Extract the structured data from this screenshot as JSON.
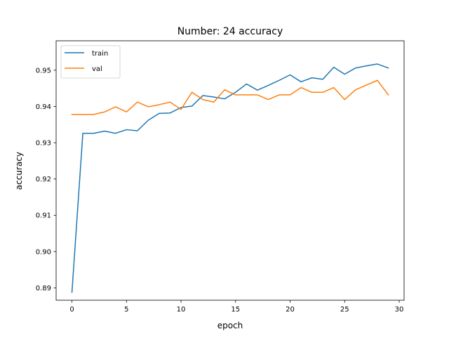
{
  "chart_data": {
    "type": "line",
    "title": "Number: 24 accuracy",
    "xlabel": "epoch",
    "ylabel": "accuracy",
    "xlim": [
      -1.45,
      30.45
    ],
    "ylim": [
      0.8866,
      0.9581
    ],
    "xticks": [
      0,
      5,
      10,
      15,
      20,
      25,
      30
    ],
    "yticks": [
      0.89,
      0.9,
      0.91,
      0.92,
      0.93,
      0.94,
      0.95
    ],
    "ytick_labels": [
      "0.89",
      "0.90",
      "0.91",
      "0.92",
      "0.93",
      "0.94",
      "0.95"
    ],
    "grid": false,
    "legend_position": "upper-left",
    "x": [
      0,
      1,
      2,
      3,
      4,
      5,
      6,
      7,
      8,
      9,
      10,
      11,
      12,
      13,
      14,
      15,
      16,
      17,
      18,
      19,
      20,
      21,
      22,
      23,
      24,
      25,
      26,
      27,
      28,
      29
    ],
    "series": [
      {
        "name": "train",
        "color": "#1f77b4",
        "values": [
          0.8888,
          0.9326,
          0.9326,
          0.9332,
          0.9326,
          0.9336,
          0.9333,
          0.9362,
          0.9381,
          0.9382,
          0.9397,
          0.9401,
          0.943,
          0.9426,
          0.9421,
          0.9439,
          0.9462,
          0.9445,
          0.9458,
          0.9472,
          0.9487,
          0.9468,
          0.9479,
          0.9475,
          0.9508,
          0.9489,
          0.9506,
          0.9512,
          0.9517,
          0.9506
        ]
      },
      {
        "name": "val",
        "color": "#ff7f0e",
        "values": [
          0.9378,
          0.9378,
          0.9378,
          0.9385,
          0.9399,
          0.9385,
          0.9412,
          0.9399,
          0.9405,
          0.9412,
          0.9392,
          0.9439,
          0.9419,
          0.9412,
          0.9446,
          0.9432,
          0.9432,
          0.9432,
          0.9419,
          0.9432,
          0.9432,
          0.9452,
          0.9439,
          0.9439,
          0.9452,
          0.9419,
          0.9446,
          0.9459,
          0.9472,
          0.9432
        ]
      }
    ]
  }
}
